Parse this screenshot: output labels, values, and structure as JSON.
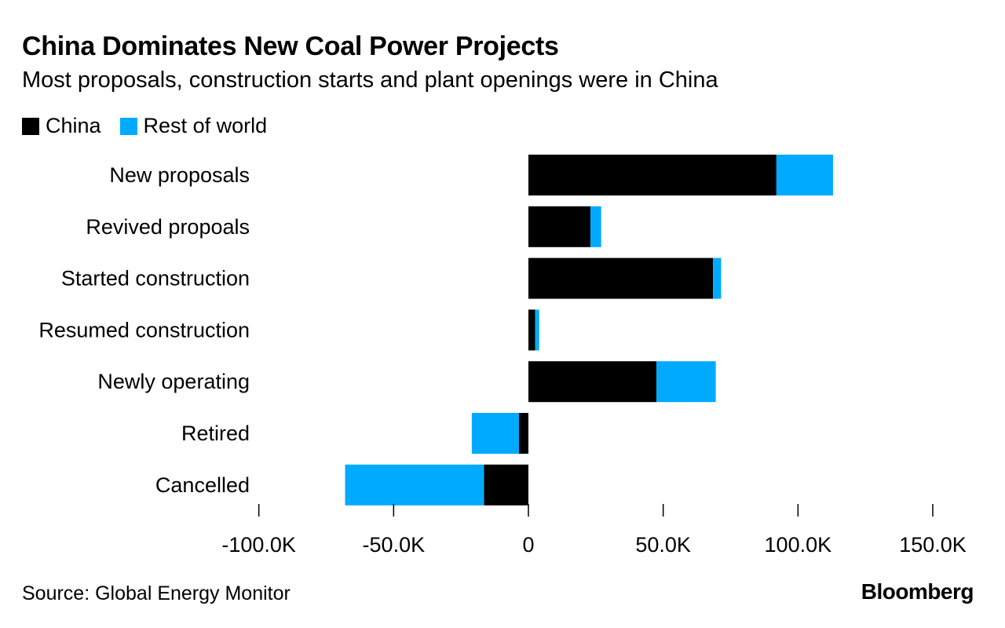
{
  "chart_data": {
    "type": "bar",
    "stacked": true,
    "orientation": "horizontal",
    "title": "China Dominates New Coal Power Projects",
    "subtitle": "Most proposals, construction starts and plant openings were in China",
    "categories": [
      "New proposals",
      "Revived propoals",
      "Started construction",
      "Resumed construction",
      "Newly operating",
      "Retired",
      "Cancelled"
    ],
    "series": [
      {
        "name": "China",
        "color": "#000000",
        "values": [
          92000,
          23000,
          68500,
          2500,
          47500,
          -3500,
          -16500
        ]
      },
      {
        "name": "Rest of world",
        "color": "#00aaff",
        "values": [
          21000,
          4000,
          3000,
          1500,
          22000,
          -17500,
          -51500
        ]
      }
    ],
    "xlim": [
      -100000,
      150000
    ],
    "x_ticks": [
      -100000,
      -50000,
      0,
      50000,
      100000,
      150000
    ],
    "x_tick_labels": [
      "-100.0K",
      "-50.0K",
      "0",
      "50.0K",
      "100.0K",
      "150.0K"
    ],
    "legend_position": "top-left",
    "grid": false
  },
  "legend": {
    "china": "China",
    "rest": "Rest of world",
    "china_color": "#000000",
    "rest_color": "#00aaff"
  },
  "footer": {
    "source": "Source: Global Energy Monitor",
    "brand": "Bloomberg"
  }
}
